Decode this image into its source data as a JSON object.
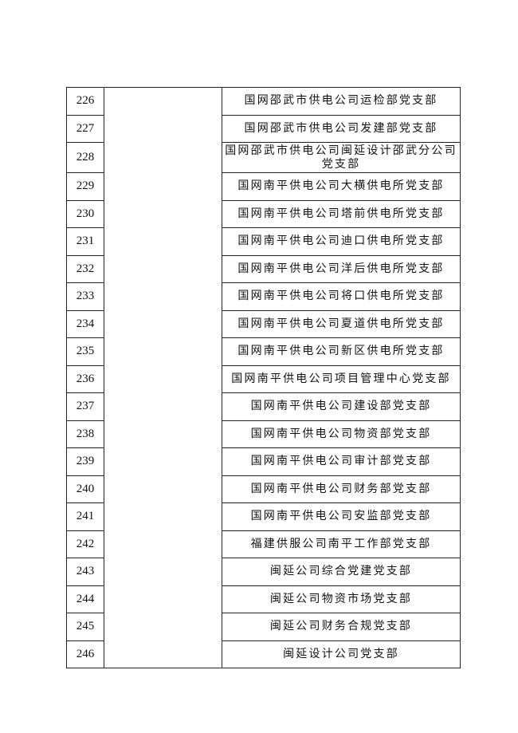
{
  "rows": [
    {
      "no": "226",
      "name": "国网邵武市供电公司运检部党支部"
    },
    {
      "no": "227",
      "name": "国网邵武市供电公司发建部党支部"
    },
    {
      "no": "228",
      "name": "国网邵武市供电公司闽延设计邵武分公司党支部"
    },
    {
      "no": "229",
      "name": "国网南平供电公司大横供电所党支部"
    },
    {
      "no": "230",
      "name": "国网南平供电公司塔前供电所党支部"
    },
    {
      "no": "231",
      "name": "国网南平供电公司迪口供电所党支部"
    },
    {
      "no": "232",
      "name": "国网南平供电公司洋后供电所党支部"
    },
    {
      "no": "233",
      "name": "国网南平供电公司将口供电所党支部"
    },
    {
      "no": "234",
      "name": "国网南平供电公司夏道供电所党支部"
    },
    {
      "no": "235",
      "name": "国网南平供电公司新区供电所党支部"
    },
    {
      "no": "236",
      "name": "国网南平供电公司项目管理中心党支部"
    },
    {
      "no": "237",
      "name": "国网南平供电公司建设部党支部"
    },
    {
      "no": "238",
      "name": "国网南平供电公司物资部党支部"
    },
    {
      "no": "239",
      "name": "国网南平供电公司审计部党支部"
    },
    {
      "no": "240",
      "name": "国网南平供电公司财务部党支部"
    },
    {
      "no": "241",
      "name": "国网南平供电公司安监部党支部"
    },
    {
      "no": "242",
      "name": "福建供服公司南平工作部党支部"
    },
    {
      "no": "243",
      "name": "闽延公司综合党建党支部"
    },
    {
      "no": "244",
      "name": "闽延公司物资市场党支部"
    },
    {
      "no": "245",
      "name": "闽延公司财务合规党支部"
    },
    {
      "no": "246",
      "name": "闽延设计公司党支部"
    }
  ]
}
